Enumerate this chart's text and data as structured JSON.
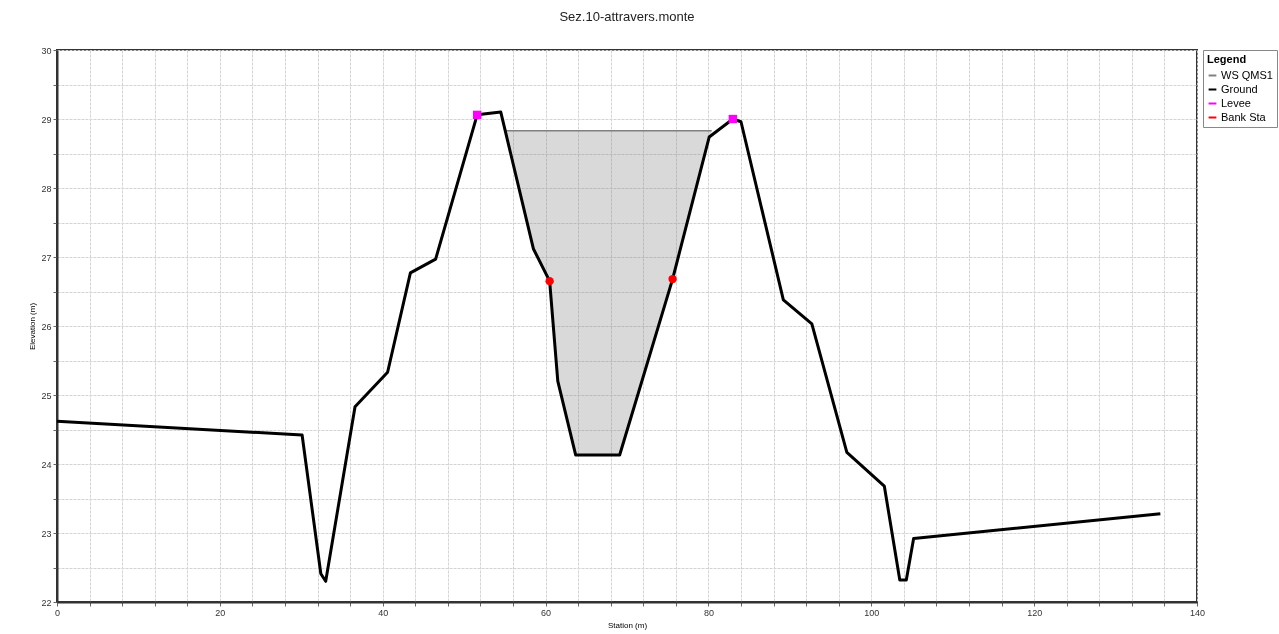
{
  "chart_data": {
    "type": "line",
    "title": "Sez.10-attravers.monte",
    "xlabel": "Station (m)",
    "ylabel": "Elevation (m)",
    "xlim": [
      0,
      140
    ],
    "ylim": [
      22,
      30
    ],
    "xticks": [
      0,
      {
        "value": 4,
        "label": null
      },
      {
        "value": 8,
        "label": null
      },
      {
        "value": 12,
        "label": null
      },
      {
        "value": 16,
        "label": null
      },
      20,
      {
        "value": 24,
        "label": null
      },
      {
        "value": 28,
        "label": null
      },
      {
        "value": 32,
        "label": null
      },
      {
        "value": 36,
        "label": null
      },
      40,
      {
        "value": 44,
        "label": null
      },
      {
        "value": 48,
        "label": null
      },
      {
        "value": 52,
        "label": null
      },
      {
        "value": 56,
        "label": null
      },
      60,
      {
        "value": 64,
        "label": null
      },
      {
        "value": 68,
        "label": null
      },
      {
        "value": 72,
        "label": null
      },
      {
        "value": 76,
        "label": null
      },
      80,
      {
        "value": 84,
        "label": null
      },
      {
        "value": 88,
        "label": null
      },
      {
        "value": 92,
        "label": null
      },
      {
        "value": 96,
        "label": null
      },
      100,
      {
        "value": 104,
        "label": null
      },
      {
        "value": 108,
        "label": null
      },
      {
        "value": 112,
        "label": null
      },
      {
        "value": 116,
        "label": null
      },
      120,
      {
        "value": 124,
        "label": null
      },
      {
        "value": 128,
        "label": null
      },
      {
        "value": 132,
        "label": null
      },
      {
        "value": 136,
        "label": null
      },
      140
    ],
    "yticks": [
      22,
      {
        "value": 22.5,
        "label": null
      },
      23,
      {
        "value": 23.5,
        "label": null
      },
      24,
      {
        "value": 24.5,
        "label": null
      },
      25,
      {
        "value": 25.5,
        "label": null
      },
      26,
      {
        "value": 26.5,
        "label": null
      },
      27,
      {
        "value": 27.5,
        "label": null
      },
      28,
      {
        "value": 28.5,
        "label": null
      },
      29,
      {
        "value": 29.5,
        "label": null
      },
      30
    ],
    "grid": true,
    "legend": "top right",
    "legend_title": "Legend",
    "series": [
      {
        "name": "WS QMS1",
        "color": "#808080",
        "marker": "none",
        "x": [
          55,
          58.5,
          60.5,
          61.5,
          63.7,
          66.7,
          69.1,
          75.6,
          80.4
        ],
        "values": [
          28.83,
          28.83,
          28.83,
          28.83,
          28.83,
          28.83,
          28.83,
          28.83,
          28.83
        ],
        "lower": [
          28.83,
          27.12,
          26.65,
          25.2,
          24.13,
          24.13,
          24.13,
          26.68,
          28.83
        ],
        "upper": [
          28.83,
          28.83,
          28.83,
          28.83,
          28.83,
          28.83,
          28.83,
          28.83,
          28.83
        ]
      },
      {
        "name": "Ground",
        "color": "#000000",
        "marker": "none",
        "x": [
          0,
          30.1,
          32.4,
          33.0,
          36.6,
          40.6,
          43.4,
          46.5,
          51.6,
          54.5,
          58.5,
          60.5,
          61.5,
          63.7,
          69.1,
          75.6,
          80.1,
          83.0,
          84.0,
          89.2,
          92.7,
          97.0,
          101.6,
          103.5,
          104.3,
          105.2,
          135.5
        ],
        "values": [
          24.62,
          24.42,
          22.41,
          22.3,
          24.83,
          25.33,
          26.77,
          26.97,
          29.06,
          29.1,
          27.12,
          26.65,
          25.2,
          24.13,
          24.13,
          26.68,
          28.74,
          29.0,
          28.96,
          26.38,
          26.03,
          24.17,
          23.68,
          22.32,
          22.32,
          22.92,
          23.28
        ]
      },
      {
        "name": "Levee",
        "type": "scatter",
        "color": "#ff00ff",
        "marker": "square",
        "x": [
          51.6,
          83.0
        ],
        "values": [
          29.06,
          29.0
        ]
      },
      {
        "name": "Bank Sta",
        "type": "scatter",
        "color": "#ff0000",
        "marker": "circle",
        "x": [
          60.5,
          75.6
        ],
        "values": [
          26.65,
          26.68
        ]
      }
    ]
  }
}
